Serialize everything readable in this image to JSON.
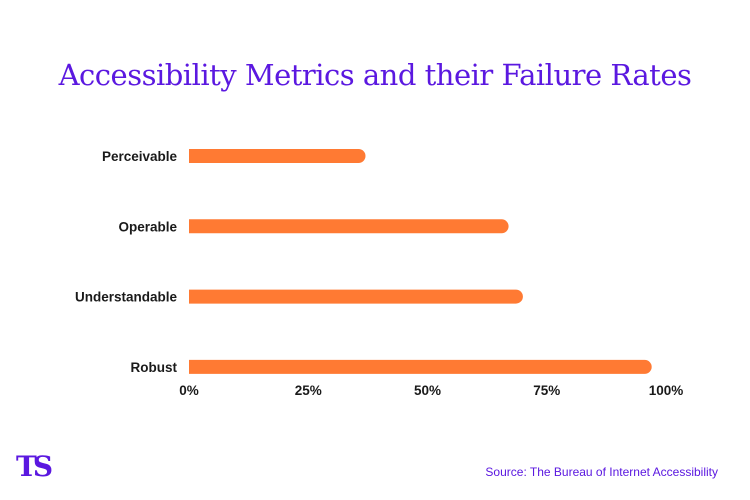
{
  "colors": {
    "title": "#5b18e0",
    "bar": "#ff7a33",
    "text": "#1a1a1a",
    "source": "#5b18e0",
    "logo": "#5b18e0"
  },
  "logo_text": "TS",
  "source_text": "Source: The Bureau of Internet Accessibility",
  "chart_data": {
    "type": "bar",
    "orientation": "horizontal",
    "title": "Accessibility Metrics and their Failure Rates",
    "categories": [
      "Perceivable",
      "Operable",
      "Understandable",
      "Robust"
    ],
    "values": [
      37,
      67,
      70,
      97
    ],
    "unit": "%",
    "xlim": [
      0,
      100
    ],
    "xticks": [
      "0%",
      "25%",
      "50%",
      "75%",
      "100%"
    ],
    "grid": false,
    "legend": "none"
  }
}
